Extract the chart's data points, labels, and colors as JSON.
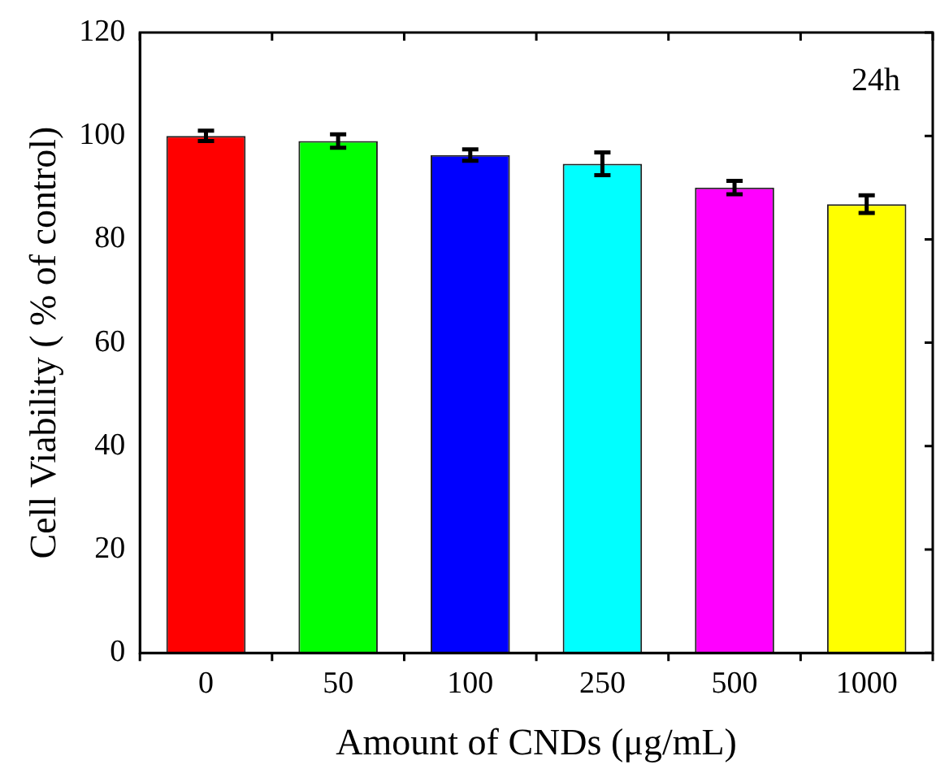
{
  "chart_data": {
    "type": "bar",
    "xlabel": "Amount of CNDs (μg/mL)",
    "ylabel": "Cell Viability ( % of control)",
    "categories": [
      "0",
      "50",
      "100",
      "250",
      "500",
      "1000"
    ],
    "values": [
      100,
      99,
      96.3,
      94.6,
      90,
      86.8
    ],
    "errors": [
      1,
      1.3,
      1.1,
      2.2,
      1.3,
      1.7
    ],
    "colors": [
      "#ff0000",
      "#00ff00",
      "#0000ff",
      "#00ffff",
      "#ff00ff",
      "#ffff00"
    ],
    "ylim": [
      0,
      120
    ],
    "yticks": [
      0,
      20,
      40,
      60,
      80,
      100,
      120
    ],
    "grid": false,
    "legend": false,
    "annotations": [
      "24h"
    ]
  }
}
